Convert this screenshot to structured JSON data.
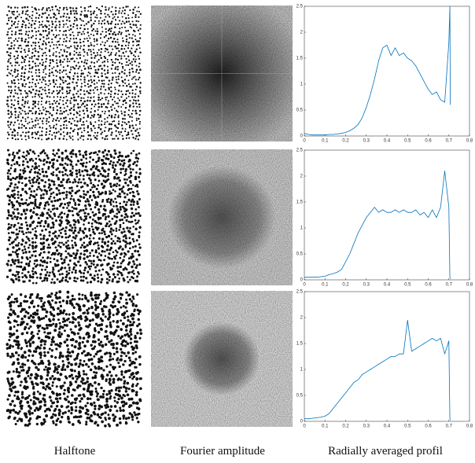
{
  "captions": [
    "Halftone",
    "Fourier amplitude",
    "Radially averaged profil"
  ],
  "chart_data": [
    {
      "type": "line",
      "color": "#0072bd",
      "x": [
        0,
        0.02,
        0.04,
        0.06,
        0.08,
        0.1,
        0.12,
        0.14,
        0.16,
        0.18,
        0.2,
        0.22,
        0.24,
        0.26,
        0.28,
        0.3,
        0.32,
        0.34,
        0.36,
        0.38,
        0.4,
        0.42,
        0.44,
        0.46,
        0.48,
        0.5,
        0.52,
        0.54,
        0.56,
        0.58,
        0.6,
        0.62,
        0.64,
        0.66,
        0.68,
        0.7,
        0.705,
        0.707
      ],
      "values": [
        0.05,
        0.03,
        0.02,
        0.02,
        0.02,
        0.02,
        0.03,
        0.03,
        0.04,
        0.05,
        0.07,
        0.1,
        0.15,
        0.22,
        0.35,
        0.55,
        0.8,
        1.1,
        1.45,
        1.7,
        1.75,
        1.55,
        1.7,
        1.55,
        1.6,
        1.5,
        1.45,
        1.35,
        1.2,
        1.05,
        0.9,
        0.8,
        0.85,
        0.7,
        0.65,
        1.8,
        2.5,
        0.6
      ],
      "xlim": [
        0,
        0.8
      ],
      "xticks": [
        0,
        0.1,
        0.2,
        0.3,
        0.4,
        0.5,
        0.6,
        0.7,
        0.8
      ],
      "ylim": [
        0,
        2.5
      ],
      "yticks": [
        0,
        0.5,
        1,
        1.5,
        2,
        2.5
      ]
    },
    {
      "type": "line",
      "color": "#0072bd",
      "x": [
        0,
        0.02,
        0.04,
        0.06,
        0.08,
        0.1,
        0.12,
        0.14,
        0.16,
        0.18,
        0.2,
        0.22,
        0.24,
        0.26,
        0.28,
        0.3,
        0.32,
        0.34,
        0.36,
        0.38,
        0.4,
        0.42,
        0.44,
        0.46,
        0.48,
        0.5,
        0.52,
        0.54,
        0.56,
        0.58,
        0.6,
        0.62,
        0.64,
        0.66,
        0.68,
        0.7,
        0.705,
        0.707
      ],
      "values": [
        0.05,
        0.05,
        0.05,
        0.05,
        0.06,
        0.07,
        0.1,
        0.12,
        0.15,
        0.2,
        0.35,
        0.5,
        0.7,
        0.9,
        1.05,
        1.2,
        1.3,
        1.4,
        1.3,
        1.35,
        1.3,
        1.3,
        1.35,
        1.3,
        1.35,
        1.3,
        1.3,
        1.35,
        1.25,
        1.3,
        1.2,
        1.35,
        1.2,
        1.4,
        2.1,
        1.4,
        0.05,
        0.02
      ],
      "xlim": [
        0,
        0.8
      ],
      "xticks": [
        0,
        0.1,
        0.2,
        0.3,
        0.4,
        0.5,
        0.6,
        0.7,
        0.8
      ],
      "ylim": [
        0,
        2.5
      ],
      "yticks": [
        0,
        0.5,
        1,
        1.5,
        2,
        2.5
      ]
    },
    {
      "type": "line",
      "color": "#0072bd",
      "x": [
        0,
        0.02,
        0.04,
        0.06,
        0.08,
        0.1,
        0.12,
        0.14,
        0.16,
        0.18,
        0.2,
        0.22,
        0.24,
        0.26,
        0.28,
        0.3,
        0.32,
        0.34,
        0.36,
        0.38,
        0.4,
        0.42,
        0.44,
        0.46,
        0.48,
        0.5,
        0.52,
        0.54,
        0.56,
        0.58,
        0.6,
        0.62,
        0.64,
        0.66,
        0.68,
        0.7,
        0.705,
        0.707
      ],
      "values": [
        0.05,
        0.05,
        0.06,
        0.07,
        0.08,
        0.1,
        0.15,
        0.25,
        0.35,
        0.45,
        0.55,
        0.65,
        0.75,
        0.8,
        0.9,
        0.95,
        1.0,
        1.05,
        1.1,
        1.15,
        1.2,
        1.25,
        1.25,
        1.3,
        1.3,
        1.95,
        1.35,
        1.4,
        1.45,
        1.5,
        1.55,
        1.6,
        1.55,
        1.6,
        1.3,
        1.55,
        0.05,
        0.02
      ],
      "xlim": [
        0,
        0.8
      ],
      "xticks": [
        0,
        0.1,
        0.2,
        0.3,
        0.4,
        0.5,
        0.6,
        0.7,
        0.8
      ],
      "ylim": [
        0,
        2.5
      ],
      "yticks": [
        0,
        0.5,
        1,
        1.5,
        2,
        2.5
      ]
    }
  ]
}
